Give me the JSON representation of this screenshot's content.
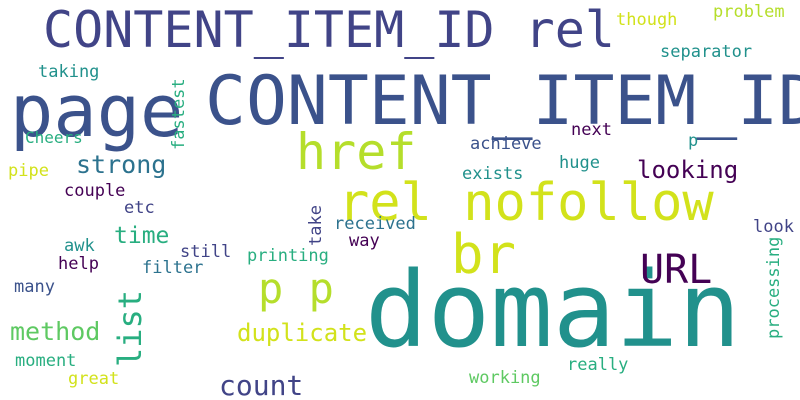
{
  "colors": {
    "background": "#ffffff",
    "dark_purple": "#440154",
    "indigo": "#3b528b",
    "slate_blue": "#414487",
    "blue_teal": "#2c728e",
    "teal": "#21918c",
    "green_teal": "#28ae80",
    "green": "#5ec962",
    "lime": "#b5de2b",
    "yellow": "#d2e21b"
  },
  "words": [
    {
      "text": "CONTENT_ITEM_ID rel"
    },
    {
      "text": "CONTENT_ITEM_ID"
    },
    {
      "text": "page"
    },
    {
      "text": "domain"
    },
    {
      "text": "rel nofollow"
    },
    {
      "text": "href"
    },
    {
      "text": "br"
    },
    {
      "text": "URL"
    },
    {
      "text": "p p"
    },
    {
      "text": "list"
    },
    {
      "text": "duplicate"
    },
    {
      "text": "count"
    },
    {
      "text": "method"
    },
    {
      "text": "strong"
    },
    {
      "text": "time"
    },
    {
      "text": "looking"
    },
    {
      "text": "though"
    },
    {
      "text": "problem"
    },
    {
      "text": "separator"
    },
    {
      "text": "taking"
    },
    {
      "text": "fastest"
    },
    {
      "text": "Cheers"
    },
    {
      "text": "next"
    },
    {
      "text": "p"
    },
    {
      "text": "achieve"
    },
    {
      "text": "exists"
    },
    {
      "text": "huge"
    },
    {
      "text": "pipe"
    },
    {
      "text": "couple"
    },
    {
      "text": "etc"
    },
    {
      "text": "take"
    },
    {
      "text": "received"
    },
    {
      "text": "way"
    },
    {
      "text": "look"
    },
    {
      "text": "awk"
    },
    {
      "text": "still"
    },
    {
      "text": "printing"
    },
    {
      "text": "help"
    },
    {
      "text": "filter"
    },
    {
      "text": "processing"
    },
    {
      "text": "many"
    },
    {
      "text": "moment"
    },
    {
      "text": "great"
    },
    {
      "text": "working"
    },
    {
      "text": "really"
    }
  ]
}
